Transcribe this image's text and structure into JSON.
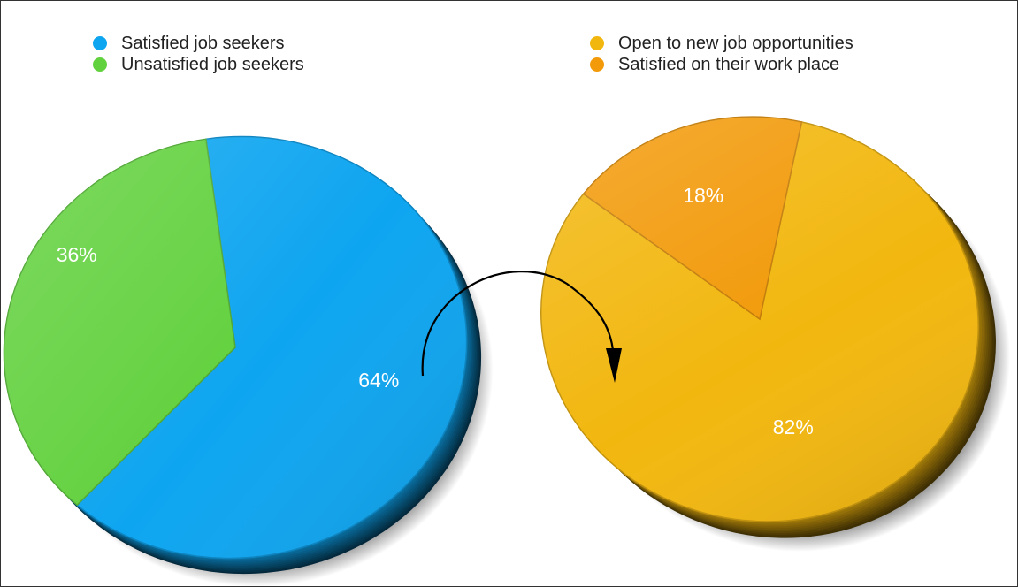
{
  "chart_data": [
    {
      "type": "pie",
      "slices": [
        {
          "label": "Satisfied job seekers",
          "value": 64,
          "display": "64%",
          "color": "#0ea5f0"
        },
        {
          "label": "Unsatisfied job seekers",
          "value": 36,
          "display": "36%",
          "color": "#62d13e"
        }
      ]
    },
    {
      "type": "pie",
      "slices": [
        {
          "label": "Open to new job opportunities",
          "value": 82,
          "display": "82%",
          "color": "#f2b70f"
        },
        {
          "label": "Satisfied on their work place",
          "value": 18,
          "display": "18%",
          "color": "#f29a0a"
        }
      ]
    }
  ],
  "annotation": {
    "type": "curved-arrow",
    "from": "left-pie",
    "to": "right-pie"
  }
}
